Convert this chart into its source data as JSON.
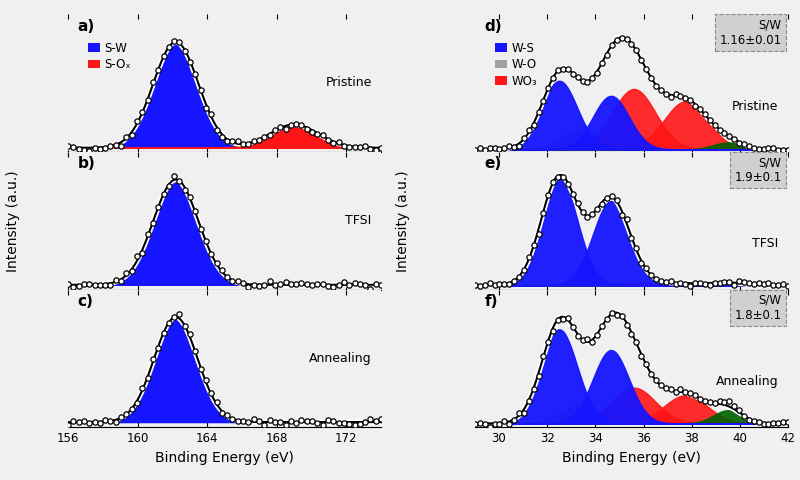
{
  "left_xlim": [
    156,
    174
  ],
  "right_xlim": [
    29,
    42
  ],
  "left_xticks": [
    156,
    160,
    164,
    168,
    172
  ],
  "right_xticks": [
    30,
    32,
    34,
    36,
    38,
    40,
    42
  ],
  "left_xlabel": "Binding Energy (eV)",
  "right_xlabel": "Binding Energy (eV)",
  "ylabel_left": "Intensity (a.u.)",
  "ylabel_right": "Intensity (a.u.)",
  "panel_labels_left": [
    "a)",
    "b)",
    "c)"
  ],
  "panel_labels_right": [
    "d)",
    "e)",
    "f)"
  ],
  "sample_labels": [
    "Pristine",
    "TFSI",
    "Annealing"
  ],
  "sw_ratios": [
    "S/W\n1.16±0.01",
    "S/W\n1.9±0.1",
    "S/W\n1.8±0.1"
  ],
  "blue": "#1515FF",
  "red": "#FF1515",
  "gray": "#A0A0A0",
  "green": "#006000",
  "white": "#FFFFFF",
  "bg_color": "#F0F0F0"
}
